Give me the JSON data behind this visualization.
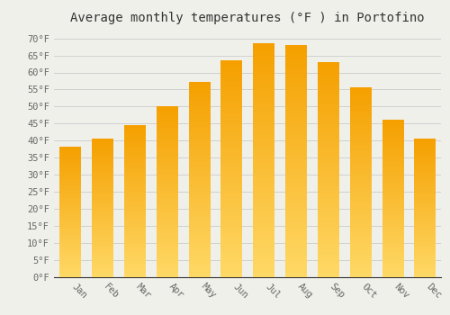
{
  "title": "Average monthly temperatures (°F ) in Portofino",
  "months": [
    "Jan",
    "Feb",
    "Mar",
    "Apr",
    "May",
    "Jun",
    "Jul",
    "Aug",
    "Sep",
    "Oct",
    "Nov",
    "Dec"
  ],
  "values": [
    38,
    40.5,
    44.5,
    50,
    57,
    63.5,
    68.5,
    68,
    63,
    55.5,
    46,
    40.5
  ],
  "bar_color_top": "#F5A800",
  "bar_color_mid": "#F5A800",
  "bar_color_bottom": "#FFD966",
  "ylim": [
    0,
    72
  ],
  "yticks": [
    0,
    5,
    10,
    15,
    20,
    25,
    30,
    35,
    40,
    45,
    50,
    55,
    60,
    65,
    70
  ],
  "ytick_labels": [
    "0°F",
    "5°F",
    "10°F",
    "15°F",
    "20°F",
    "25°F",
    "30°F",
    "35°F",
    "40°F",
    "45°F",
    "50°F",
    "55°F",
    "60°F",
    "65°F",
    "70°F"
  ],
  "grid_color": "#d0d0d0",
  "background_color": "#f0f0eb",
  "title_fontsize": 10,
  "tick_fontsize": 7.5,
  "bar_width": 0.65
}
